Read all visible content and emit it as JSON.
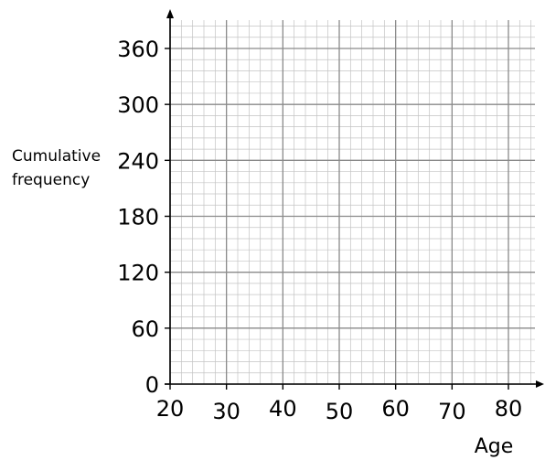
{
  "chart_data": {
    "type": "line",
    "title": "",
    "xlabel": "Age",
    "ylabel_lines": [
      "Cumulative",
      "frequency"
    ],
    "x_ticks": [
      20,
      30,
      40,
      50,
      60,
      70,
      80
    ],
    "y_ticks": [
      0,
      60,
      120,
      180,
      240,
      300,
      360
    ],
    "xlim": [
      20,
      85
    ],
    "ylim": [
      0,
      390
    ],
    "grid": true,
    "grid_minor_per_major": 5,
    "series": [],
    "colors": {
      "major_grid": "#8a8a8a",
      "minor_grid": "#c4c4c4",
      "axis": "#000000"
    }
  }
}
